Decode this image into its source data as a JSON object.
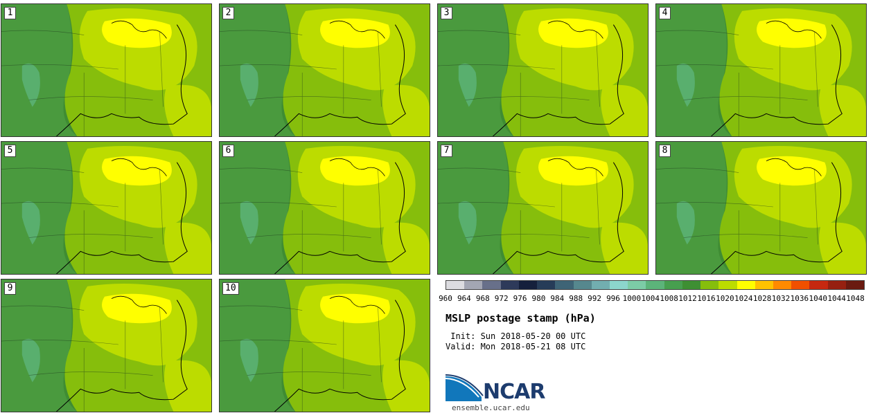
{
  "panels": [
    {
      "label": "1"
    },
    {
      "label": "2"
    },
    {
      "label": "3"
    },
    {
      "label": "4"
    },
    {
      "label": "5"
    },
    {
      "label": "6"
    },
    {
      "label": "7"
    },
    {
      "label": "8"
    },
    {
      "label": "9"
    },
    {
      "label": "10"
    }
  ],
  "legend": {
    "ticks": [
      "960",
      "964",
      "968",
      "972",
      "976",
      "980",
      "984",
      "988",
      "992",
      "996",
      "1000",
      "1004",
      "1008",
      "1012",
      "1016",
      "1020",
      "1024",
      "1028",
      "1032",
      "1036",
      "1040",
      "1044",
      "1048"
    ],
    "colors": [
      "#dcdce0",
      "#a3a6b3",
      "#68708a",
      "#2e3a5a",
      "#15203c",
      "#263c58",
      "#3e6476",
      "#56888e",
      "#72aeb0",
      "#8cd6cc",
      "#7ccca6",
      "#5cb47a",
      "#479f4f",
      "#3e8f33",
      "#86be0c",
      "#bcdc00",
      "#ffff00",
      "#ffc200",
      "#ff8a00",
      "#f05000",
      "#c62810",
      "#962010",
      "#6a1a10"
    ]
  },
  "map_colors": {
    "low": "#4a9a3e",
    "mid_low": "#3f8c33",
    "mid": "#86be0c",
    "high": "#bcdc00",
    "peak": "#ffff00",
    "mountain": "#5cb47a"
  },
  "title": "MSLP postage stamp (hPa)",
  "init": " Init: Sun 2018-05-20 00 UTC",
  "valid": "Valid: Mon 2018-05-21 08 UTC",
  "logo": {
    "word": "NCAR",
    "site": "ensemble.ucar.edu"
  }
}
